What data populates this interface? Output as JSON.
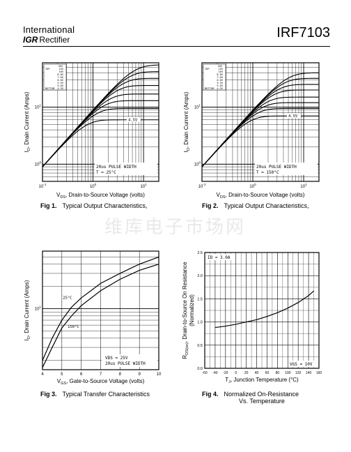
{
  "header": {
    "brand_line1": "International",
    "brand_logo": "IGR",
    "brand_line2": "Rectifier",
    "part_number": "IRF7103"
  },
  "watermark": "维库电子市场网",
  "captions": {
    "fig1": {
      "num": "Fig 1.",
      "text": "Typical Output Characteristics,"
    },
    "fig2": {
      "num": "Fig 2.",
      "text": "Typical Output Characteristics,"
    },
    "fig3": {
      "num": "Fig 3.",
      "text": "Typical Transfer Characteristics"
    },
    "fig4": {
      "num": "Fig 4.",
      "text": "Normalized On-Resistance",
      "text2": "Vs. Temperature"
    }
  },
  "chart_data": [
    {
      "id": "fig1",
      "type": "line",
      "xscale": "log",
      "yscale": "log",
      "xlim": [
        0.1,
        20
      ],
      "ylim": [
        0.5,
        60
      ],
      "xlabel": "VDS, Drain-to-Source Voltage (volts)",
      "ylabel": "ID, Drain Current (Amps)",
      "xticks": [
        "10^-1",
        "10^0",
        "10^1"
      ],
      "yticks": [
        "10^0",
        "10^1"
      ],
      "legend": {
        "title": "VGS",
        "labels": [
          "TOP",
          "",
          "",
          "",
          "",
          "",
          "",
          "BOTTOM"
        ],
        "values": [
          "15V",
          "10V",
          "8.0V",
          "7.0V",
          "6.0V",
          "5.5V",
          "5.0V",
          "4.5V"
        ]
      },
      "annotations": [
        "20us PULSE WIDTH",
        "TC = 25°C",
        "4.5V"
      ],
      "series": [
        {
          "vgs": 15,
          "sat": 55
        },
        {
          "vgs": 10,
          "sat": 42
        },
        {
          "vgs": 8,
          "sat": 32
        },
        {
          "vgs": 7,
          "sat": 24
        },
        {
          "vgs": 6,
          "sat": 17
        },
        {
          "vgs": 5.5,
          "sat": 13
        },
        {
          "vgs": 5,
          "sat": 9.5
        },
        {
          "vgs": 4.5,
          "sat": 6
        }
      ]
    },
    {
      "id": "fig2",
      "type": "line",
      "xscale": "log",
      "yscale": "log",
      "xlim": [
        0.1,
        20
      ],
      "ylim": [
        0.5,
        60
      ],
      "xlabel": "VDS, Drain-to-Source Voltage (volts)",
      "ylabel": "ID, Drain Current (Amps)",
      "xticks": [
        "10^-1",
        "10^0",
        "10^1"
      ],
      "yticks": [
        "10^0",
        "10^1"
      ],
      "legend": {
        "title": "VGS",
        "labels": [
          "TOP",
          "",
          "",
          "",
          "",
          "",
          "",
          "BOTTOM"
        ],
        "values": [
          "15V",
          "10V",
          "8.0V",
          "7.0V",
          "6.0V",
          "5.5V",
          "5.0V",
          "4.5V"
        ]
      },
      "annotations": [
        "20us PULSE WIDTH",
        "TC = 150°C",
        "4.5V"
      ],
      "series": [
        {
          "vgs": 15,
          "sat": 40
        },
        {
          "vgs": 10,
          "sat": 32
        },
        {
          "vgs": 8,
          "sat": 25
        },
        {
          "vgs": 7,
          "sat": 20
        },
        {
          "vgs": 6,
          "sat": 15
        },
        {
          "vgs": 5.5,
          "sat": 12
        },
        {
          "vgs": 5,
          "sat": 9.5
        },
        {
          "vgs": 4.5,
          "sat": 7
        }
      ]
    },
    {
      "id": "fig3",
      "type": "line",
      "xscale": "linear",
      "yscale": "log",
      "xlim": [
        4,
        10
      ],
      "ylim": [
        1.5,
        60
      ],
      "xlabel": "VGS, Gate-to-Source Voltage (volts)",
      "ylabel": "ID, Drain Current (Amps)",
      "xticks": [
        "4",
        "5",
        "6",
        "7",
        "8",
        "9",
        "10"
      ],
      "yticks": [
        "10^1"
      ],
      "annotations": [
        "VDS = 25V",
        "20us PULSE WIDTH"
      ],
      "series": [
        {
          "name": "25°C",
          "x": [
            4,
            4.5,
            5,
            5.5,
            6,
            7,
            8,
            9,
            10
          ],
          "y": [
            2,
            4,
            7,
            10.5,
            14,
            22,
            30,
            40,
            50
          ]
        },
        {
          "name": "150°C",
          "x": [
            4,
            4.5,
            5,
            5.5,
            6,
            7,
            8,
            9,
            10
          ],
          "y": [
            1.6,
            3,
            5.5,
            8,
            11,
            17.5,
            25,
            33,
            40
          ]
        }
      ]
    },
    {
      "id": "fig4",
      "type": "line",
      "xscale": "linear",
      "yscale": "linear",
      "xlim": [
        -60,
        160
      ],
      "ylim": [
        0,
        2.5
      ],
      "xlabel": "TJ, Junction Temperature (°C)",
      "ylabel": "RDS(on), Drain-to-Source On Resistance (Normalized)",
      "xticks": [
        "-60",
        "-40",
        "-20",
        "0",
        "20",
        "40",
        "60",
        "80",
        "100",
        "120",
        "140",
        "160"
      ],
      "yticks": [
        "0.0",
        "0.5",
        "1.0",
        "1.5",
        "2.0",
        "2.5"
      ],
      "annotations": [
        "ID = 3.0A",
        "VGS = 10V"
      ],
      "series": [
        {
          "x": [
            -40,
            -20,
            0,
            20,
            40,
            60,
            80,
            100,
            120,
            140,
            150
          ],
          "y": [
            0.88,
            0.91,
            0.95,
            1.0,
            1.05,
            1.12,
            1.2,
            1.3,
            1.42,
            1.57,
            1.67
          ]
        }
      ]
    }
  ]
}
